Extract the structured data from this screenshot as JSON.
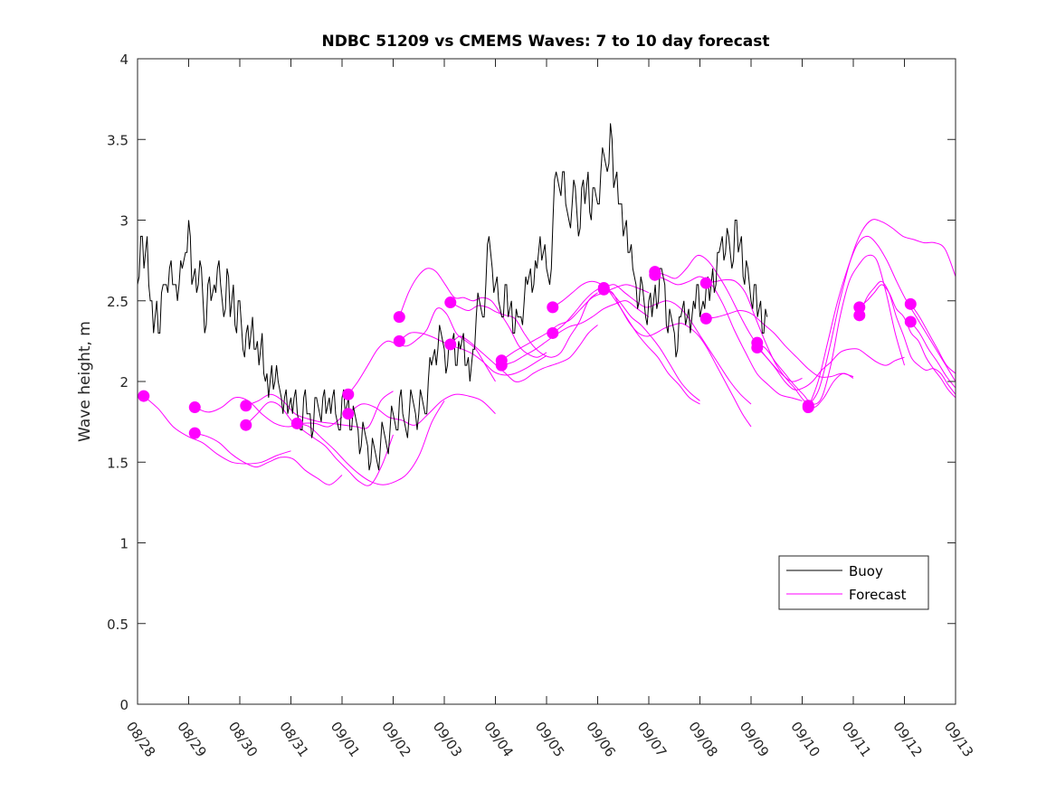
{
  "chart_data": {
    "type": "line",
    "title": "NDBC 51209 vs CMEMS Waves: 7 to 10 day forecast",
    "xlabel": "",
    "ylabel": "Wave height, m",
    "xlim": [
      0,
      16
    ],
    "ylim": [
      0,
      4
    ],
    "x_unit": "days since 08/28",
    "x_tick_labels": [
      "08/28",
      "08/29",
      "08/30",
      "08/31",
      "09/01",
      "09/02",
      "09/03",
      "09/04",
      "09/05",
      "09/06",
      "09/07",
      "09/08",
      "09/09",
      "09/10",
      "09/11",
      "09/12",
      "09/13"
    ],
    "y_ticks": [
      0,
      0.5,
      1,
      1.5,
      2,
      2.5,
      3,
      3.5,
      4
    ],
    "y_tick_labels": [
      "0",
      "0.5",
      "1",
      "1.5",
      "2",
      "2.5",
      "3",
      "3.5",
      "4"
    ],
    "grid": false,
    "legend": {
      "position": "bottom-right",
      "entries": [
        {
          "label": "Buoy",
          "color": "#000000"
        },
        {
          "label": "Forecast",
          "color": "#ff00ff"
        }
      ]
    },
    "colors": {
      "buoy": "#000000",
      "forecast": "#ff00ff",
      "axis": "#262626"
    },
    "buoy": {
      "name": "Buoy",
      "x_start": 0,
      "dx": 0.0625,
      "y": [
        2.6,
        2.9,
        2.7,
        2.9,
        2.5,
        2.3,
        2.5,
        2.3,
        2.6,
        2.6,
        2.7,
        2.6,
        2.6,
        2.6,
        2.7,
        2.8,
        3.0,
        2.6,
        2.7,
        2.6,
        2.7,
        2.3,
        2.6,
        2.5,
        2.6,
        2.7,
        2.6,
        2.4,
        2.7,
        2.4,
        2.6,
        2.3,
        2.5,
        2.2,
        2.3,
        2.2,
        2.4,
        2.2,
        2.1,
        2.3,
        2.0,
        1.9,
        2.1,
        2.0,
        2.0,
        1.9,
        1.9,
        1.8,
        1.9,
        1.9,
        1.8,
        1.7,
        1.9,
        1.8,
        1.8,
        1.7,
        1.9,
        1.8,
        1.9,
        1.8,
        1.9,
        1.9,
        1.8,
        1.7,
        1.9,
        1.8,
        1.9,
        1.7,
        1.8,
        1.7,
        1.6,
        1.7,
        1.6,
        1.5,
        1.6,
        1.5,
        1.6,
        1.7,
        1.6,
        1.7,
        1.8,
        1.7,
        1.9,
        1.8,
        1.7,
        1.8,
        1.9,
        1.8,
        1.8,
        1.9,
        1.8,
        2.0,
        2.1,
        2.2,
        2.2,
        2.3,
        2.2,
        2.1,
        2.2,
        2.3,
        2.1,
        2.2,
        2.3,
        2.1,
        2.0,
        2.2,
        2.4,
        2.5,
        2.4,
        2.6,
        2.9,
        2.7,
        2.6,
        2.5,
        2.4,
        2.6,
        2.4,
        2.5,
        2.3,
        2.4,
        2.4,
        2.5,
        2.6,
        2.7,
        2.6,
        2.7,
        2.9,
        2.8,
        2.7,
        2.6,
        3.0,
        3.3,
        3.2,
        3.3,
        3.1,
        3.0,
        3.1,
        3.2,
        2.9,
        3.2,
        3.1,
        3.3,
        3.0,
        3.2,
        3.1,
        3.3,
        3.4,
        3.3,
        3.6,
        3.2,
        3.3,
        3.1,
        2.9,
        3.0,
        2.8,
        2.7,
        2.6,
        2.5,
        2.6,
        2.4,
        2.5,
        2.4,
        2.6,
        2.5,
        2.7,
        2.6,
        2.3,
        2.4,
        2.3,
        2.2,
        2.4,
        2.5,
        2.4,
        2.3,
        2.5,
        2.6,
        2.4,
        2.5,
        2.6,
        2.5,
        2.7,
        2.6,
        2.8,
        2.9,
        2.8,
        2.9,
        2.7,
        3.0,
        2.8,
        2.9,
        2.6,
        2.7,
        2.5,
        2.6,
        2.4,
        2.5,
        2.3,
        2.4
      ],
      "note": "approximate values read from the plot"
    },
    "forecasts": [
      {
        "start_x": 0.12,
        "marker": 1.91,
        "x_end": 3.0,
        "y": [
          1.91,
          1.83,
          1.72,
          1.66,
          1.62,
          1.55,
          1.5,
          1.49,
          1.5,
          1.54,
          1.57
        ]
      },
      {
        "start_x": 1.12,
        "marker": 1.84,
        "x_end": 4.0,
        "y": [
          1.84,
          1.81,
          1.84,
          1.9,
          1.88,
          1.8,
          1.74,
          1.72,
          1.74,
          1.74,
          1.72,
          1.78
        ]
      },
      {
        "start_x": 1.12,
        "marker": 1.68,
        "x_end": 4.0,
        "y": [
          1.68,
          1.66,
          1.62,
          1.55,
          1.5,
          1.47,
          1.5,
          1.53,
          1.52,
          1.45,
          1.4,
          1.36,
          1.42
        ]
      },
      {
        "start_x": 2.12,
        "marker": 1.85,
        "x_end": 5.0,
        "y": [
          1.85,
          1.88,
          1.92,
          1.88,
          1.8,
          1.77,
          1.75,
          1.74,
          1.73,
          1.72,
          1.72,
          1.88,
          1.94
        ]
      },
      {
        "start_x": 2.12,
        "marker": 1.73,
        "x_end": 5.0,
        "y": [
          1.73,
          1.8,
          1.87,
          1.85,
          1.76,
          1.7,
          1.65,
          1.6,
          1.52,
          1.45,
          1.38,
          1.36,
          1.48,
          1.67
        ]
      },
      {
        "start_x": 3.12,
        "marker": 1.74,
        "x_end": 6.0,
        "y": [
          1.74,
          1.72,
          1.65,
          1.58,
          1.5,
          1.43,
          1.38,
          1.36,
          1.38,
          1.43,
          1.55,
          1.75,
          1.88
        ]
      },
      {
        "start_x": 4.12,
        "marker": 1.92,
        "x_end": 7.0,
        "y": [
          1.92,
          2.0,
          2.1,
          2.2,
          2.25,
          2.23,
          2.22,
          2.26,
          2.32,
          2.45,
          2.42,
          2.3,
          2.25,
          2.2,
          2.1,
          2.0
        ]
      },
      {
        "start_x": 4.12,
        "marker": 1.8,
        "x_end": 7.0,
        "y": [
          1.8,
          1.86,
          1.84,
          1.78,
          1.76,
          1.73,
          1.8,
          1.88,
          1.92,
          1.91,
          1.88,
          1.8
        ]
      },
      {
        "start_x": 5.12,
        "marker": 2.4,
        "x_end": 8.0,
        "y": [
          2.4,
          2.55,
          2.65,
          2.7,
          2.68,
          2.6,
          2.52,
          2.52,
          2.5,
          2.52,
          2.5,
          2.42,
          2.33,
          2.22,
          2.17,
          2.15,
          2.18
        ]
      },
      {
        "start_x": 5.12,
        "marker": 2.25,
        "x_end": 8.0,
        "y": [
          2.25,
          2.3,
          2.3,
          2.28,
          2.25,
          2.22,
          2.2,
          2.17,
          2.12,
          2.06,
          2.04,
          2.05,
          2.08,
          2.12,
          2.16
        ]
      },
      {
        "start_x": 6.12,
        "marker": 2.49,
        "x_end": 9.0,
        "y": [
          2.49,
          2.46,
          2.44,
          2.47,
          2.46,
          2.43,
          2.41,
          2.39,
          2.3,
          2.22,
          2.17,
          2.15,
          2.18,
          2.28,
          2.37,
          2.5,
          2.55
        ]
      },
      {
        "start_x": 6.12,
        "marker": 2.23,
        "x_end": 9.0,
        "y": [
          2.23,
          2.28,
          2.25,
          2.2,
          2.15,
          2.1,
          2.05,
          2.0,
          2.01,
          2.05,
          2.08,
          2.1,
          2.12,
          2.15,
          2.22,
          2.3,
          2.35
        ]
      },
      {
        "start_x": 7.12,
        "marker": 2.13,
        "x_end": 10.0,
        "y": [
          2.13,
          2.18,
          2.22,
          2.26,
          2.3,
          2.35,
          2.38,
          2.45,
          2.52,
          2.55,
          2.58,
          2.6,
          2.58,
          2.55
        ]
      },
      {
        "start_x": 7.12,
        "marker": 2.1,
        "x_end": 10.0,
        "y": [
          2.1,
          2.12,
          2.16,
          2.2,
          2.25,
          2.3,
          2.34,
          2.36,
          2.4,
          2.45,
          2.48,
          2.5,
          2.45,
          2.4
        ]
      },
      {
        "start_x": 8.12,
        "marker": 2.46,
        "x_end": 11.0,
        "y": [
          2.46,
          2.5,
          2.55,
          2.6,
          2.62,
          2.6,
          2.55,
          2.48,
          2.4,
          2.35,
          2.28,
          2.2,
          2.1,
          2.0,
          1.93,
          1.88
        ]
      },
      {
        "start_x": 8.12,
        "marker": 2.3,
        "x_end": 11.0,
        "y": [
          2.3,
          2.35,
          2.42,
          2.5,
          2.56,
          2.58,
          2.5,
          2.4,
          2.3,
          2.22,
          2.15,
          2.05,
          1.98,
          1.9,
          1.86
        ]
      },
      {
        "start_x": 9.12,
        "marker": 2.58,
        "x_end": 12.0,
        "y": [
          2.58,
          2.6,
          2.55,
          2.5,
          2.46,
          2.48,
          2.5,
          2.47,
          2.4,
          2.3,
          2.2,
          2.1,
          2.0,
          1.92,
          1.86
        ]
      },
      {
        "start_x": 9.12,
        "marker": 2.57,
        "x_end": 12.0,
        "y": [
          2.57,
          2.55,
          2.45,
          2.36,
          2.3,
          2.28,
          2.3,
          2.33,
          2.35,
          2.36,
          2.33,
          2.28,
          2.2,
          2.1,
          2.0,
          1.9,
          1.8,
          1.72
        ]
      },
      {
        "start_x": 10.12,
        "marker": 2.68,
        "x_end": 13.0,
        "y": [
          2.68,
          2.66,
          2.64,
          2.7,
          2.78,
          2.75,
          2.66,
          2.55,
          2.42,
          2.3,
          2.2,
          2.12,
          2.05,
          2.0,
          2.02
        ]
      },
      {
        "start_x": 10.12,
        "marker": 2.66,
        "x_end": 13.0,
        "y": [
          2.66,
          2.63,
          2.6,
          2.62,
          2.65,
          2.6,
          2.48,
          2.32,
          2.18,
          2.05,
          1.98,
          1.92,
          1.9,
          1.88
        ]
      },
      {
        "start_x": 11.12,
        "marker": 2.61,
        "x_end": 14.0,
        "y": [
          2.61,
          2.62,
          2.63,
          2.62,
          2.55,
          2.4,
          2.25,
          2.12,
          2.03,
          1.96,
          1.88,
          1.84,
          1.9,
          2.0,
          2.05,
          2.02
        ]
      },
      {
        "start_x": 11.12,
        "marker": 2.39,
        "x_end": 14.0,
        "y": [
          2.39,
          2.4,
          2.42,
          2.44,
          2.42,
          2.36,
          2.3,
          2.22,
          2.15,
          2.08,
          2.03,
          2.03,
          2.05,
          2.03
        ]
      },
      {
        "start_x": 12.12,
        "marker": 2.24,
        "x_end": 15.0,
        "y": [
          2.24,
          2.2,
          2.12,
          2.05,
          1.98,
          1.92,
          1.86,
          1.9,
          2.1,
          2.4,
          2.62,
          2.72,
          2.78,
          2.75,
          2.55,
          2.3,
          2.1
        ]
      },
      {
        "start_x": 12.12,
        "marker": 2.21,
        "x_end": 15.0,
        "y": [
          2.21,
          2.15,
          2.08,
          2.0,
          1.95,
          1.96,
          2.0,
          2.07,
          2.12,
          2.18,
          2.2,
          2.2,
          2.16,
          2.12,
          2.1,
          2.13,
          2.15
        ]
      },
      {
        "start_x": 13.12,
        "marker": 1.85,
        "x_end": 16.0,
        "y": [
          1.85,
          1.95,
          2.2,
          2.5,
          2.75,
          2.92,
          3.0,
          2.99,
          2.95,
          2.9,
          2.88,
          2.86,
          2.86,
          2.82,
          2.65
        ]
      },
      {
        "start_x": 13.12,
        "marker": 1.84,
        "x_end": 16.0,
        "y": [
          1.84,
          2.0,
          2.25,
          2.5,
          2.7,
          2.85,
          2.9,
          2.85,
          2.75,
          2.62,
          2.5,
          2.4,
          2.3,
          2.2,
          2.1,
          2.0
        ]
      },
      {
        "start_x": 14.12,
        "marker": 2.46,
        "x_end": 16.0,
        "y": [
          2.46,
          2.5,
          2.55,
          2.6,
          2.55,
          2.45,
          2.4,
          2.3,
          2.25,
          2.15,
          2.08,
          2.02,
          1.95,
          1.9
        ]
      },
      {
        "start_x": 14.12,
        "marker": 2.41,
        "x_end": 16.0,
        "y": [
          2.41,
          2.52,
          2.58,
          2.62,
          2.55,
          2.4,
          2.28,
          2.15,
          2.1,
          2.07,
          2.08,
          2.05,
          1.98,
          1.92
        ]
      },
      {
        "start_x": 15.12,
        "marker": 2.48,
        "x_end": 16.0,
        "y": [
          2.48,
          2.4,
          2.3,
          2.2,
          2.1,
          2.05
        ]
      },
      {
        "start_x": 15.12,
        "marker": 2.37,
        "x_end": 16.0,
        "y": [
          2.37,
          2.3,
          2.2,
          2.12,
          2.03,
          1.96
        ]
      }
    ]
  }
}
